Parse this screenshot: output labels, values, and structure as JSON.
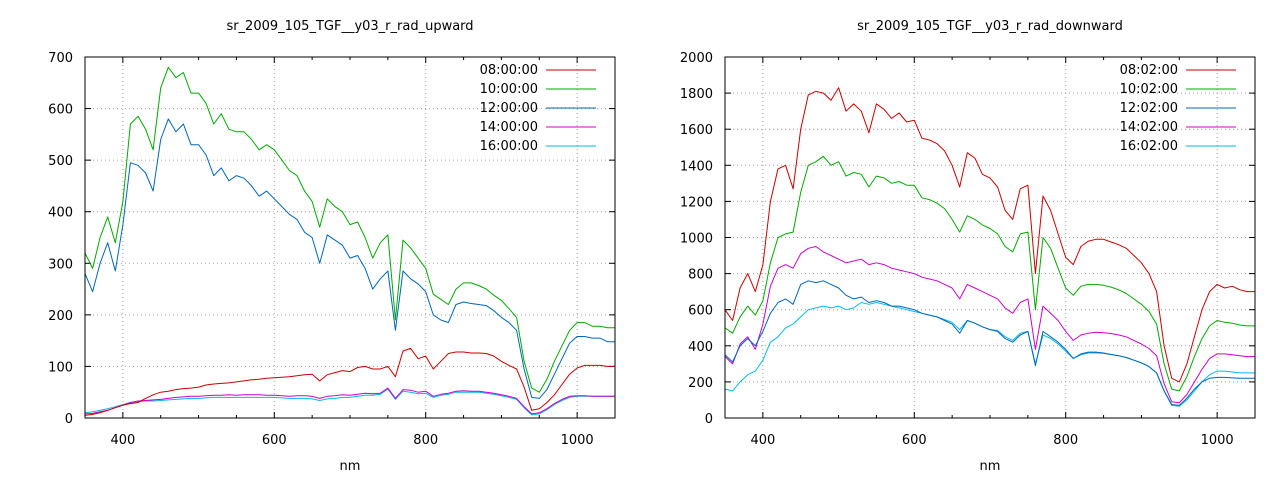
{
  "chart_data": [
    {
      "type": "line",
      "title": "sr_2009_105_TGF__y03_r_rad_upward",
      "xlabel": "nm",
      "ylabel": "",
      "xlim": [
        350,
        1050
      ],
      "ylim": [
        0,
        700
      ],
      "xticks": [
        "400",
        "600",
        "800",
        "1000"
      ],
      "yticks": [
        "0",
        "100",
        "200",
        "300",
        "400",
        "500",
        "600",
        "700"
      ],
      "grid": true,
      "legend": "top-right",
      "x": [
        350,
        360,
        370,
        380,
        390,
        400,
        410,
        420,
        430,
        440,
        450,
        460,
        470,
        480,
        490,
        500,
        510,
        520,
        530,
        540,
        550,
        560,
        570,
        580,
        590,
        600,
        610,
        620,
        630,
        640,
        650,
        660,
        670,
        680,
        690,
        700,
        710,
        720,
        730,
        740,
        750,
        760,
        770,
        780,
        790,
        800,
        810,
        820,
        830,
        840,
        850,
        860,
        870,
        880,
        890,
        900,
        910,
        920,
        930,
        940,
        950,
        960,
        970,
        980,
        990,
        1000,
        1010,
        1020,
        1030,
        1040,
        1050
      ],
      "series": [
        {
          "name": "08:00:00",
          "color": "#cc0000",
          "values": [
            5,
            7,
            10,
            15,
            20,
            25,
            28,
            30,
            38,
            45,
            50,
            52,
            55,
            57,
            58,
            60,
            64,
            66,
            67,
            68,
            70,
            72,
            74,
            75,
            77,
            78,
            79,
            80,
            82,
            84,
            85,
            72,
            84,
            88,
            92,
            90,
            98,
            100,
            95,
            95,
            100,
            80,
            130,
            135,
            115,
            120,
            95,
            110,
            125,
            128,
            128,
            126,
            126,
            125,
            120,
            110,
            102,
            95,
            60,
            15,
            18,
            30,
            45,
            65,
            85,
            97,
            102,
            102,
            102,
            100,
            100
          ]
        },
        {
          "name": "10:00:00",
          "color": "#00aa00",
          "values": [
            320,
            290,
            350,
            390,
            340,
            420,
            570,
            585,
            560,
            520,
            640,
            680,
            660,
            670,
            630,
            630,
            610,
            570,
            590,
            560,
            555,
            555,
            540,
            520,
            530,
            520,
            500,
            480,
            470,
            440,
            420,
            370,
            425,
            410,
            400,
            375,
            380,
            350,
            310,
            340,
            355,
            190,
            345,
            330,
            310,
            290,
            240,
            230,
            220,
            250,
            262,
            262,
            257,
            250,
            238,
            228,
            212,
            195,
            110,
            58,
            50,
            75,
            110,
            140,
            170,
            185,
            185,
            178,
            178,
            175,
            175
          ]
        },
        {
          "name": "12:00:00",
          "color": "#0066bb",
          "values": [
            280,
            245,
            300,
            340,
            285,
            375,
            495,
            490,
            475,
            440,
            540,
            580,
            555,
            570,
            530,
            530,
            510,
            470,
            485,
            460,
            470,
            465,
            450,
            430,
            440,
            425,
            410,
            395,
            385,
            360,
            350,
            300,
            355,
            345,
            335,
            310,
            315,
            290,
            250,
            270,
            285,
            170,
            285,
            270,
            260,
            245,
            200,
            190,
            185,
            220,
            225,
            222,
            220,
            218,
            208,
            195,
            185,
            170,
            95,
            40,
            38,
            55,
            85,
            115,
            145,
            158,
            158,
            155,
            155,
            148,
            148
          ]
        },
        {
          "name": "14:00:00",
          "color": "#cc00cc",
          "values": [
            8,
            9,
            12,
            15,
            20,
            25,
            30,
            33,
            34,
            35,
            36,
            38,
            40,
            41,
            42,
            42,
            43,
            44,
            44,
            45,
            44,
            45,
            45,
            45,
            44,
            44,
            43,
            42,
            43,
            43,
            42,
            38,
            42,
            43,
            45,
            44,
            46,
            48,
            47,
            48,
            58,
            38,
            55,
            54,
            50,
            52,
            42,
            46,
            48,
            52,
            53,
            52,
            52,
            50,
            48,
            45,
            42,
            38,
            22,
            8,
            10,
            18,
            28,
            36,
            42,
            43,
            43,
            42,
            42,
            42,
            42
          ]
        },
        {
          "name": "16:00:00",
          "color": "#00bbee",
          "values": [
            10,
            12,
            15,
            18,
            22,
            26,
            30,
            32,
            33,
            33,
            34,
            35,
            36,
            37,
            38,
            38,
            39,
            40,
            40,
            40,
            40,
            40,
            40,
            40,
            40,
            40,
            39,
            38,
            38,
            38,
            37,
            34,
            37,
            38,
            40,
            40,
            42,
            44,
            44,
            46,
            56,
            36,
            52,
            50,
            47,
            48,
            40,
            44,
            46,
            50,
            50,
            50,
            50,
            48,
            46,
            43,
            40,
            36,
            20,
            6,
            8,
            16,
            26,
            34,
            40,
            42,
            42,
            42,
            42,
            42,
            42
          ]
        }
      ]
    },
    {
      "type": "line",
      "title": "sr_2009_105_TGF__y03_r_rad_downward",
      "xlabel": "nm",
      "ylabel": "",
      "xlim": [
        350,
        1050
      ],
      "ylim": [
        0,
        2000
      ],
      "xticks": [
        "400",
        "600",
        "800",
        "1000"
      ],
      "yticks": [
        "0",
        "200",
        "400",
        "600",
        "800",
        "1000",
        "1200",
        "1400",
        "1600",
        "1800",
        "2000"
      ],
      "grid": true,
      "legend": "top-right",
      "x": [
        350,
        360,
        370,
        380,
        390,
        400,
        410,
        420,
        430,
        440,
        450,
        460,
        470,
        480,
        490,
        500,
        510,
        520,
        530,
        540,
        550,
        560,
        570,
        580,
        590,
        600,
        610,
        620,
        630,
        640,
        650,
        660,
        670,
        680,
        690,
        700,
        710,
        720,
        730,
        740,
        750,
        760,
        770,
        780,
        790,
        800,
        810,
        820,
        830,
        840,
        850,
        860,
        870,
        880,
        890,
        900,
        910,
        920,
        930,
        940,
        950,
        960,
        970,
        980,
        990,
        1000,
        1010,
        1020,
        1030,
        1040,
        1050
      ],
      "series": [
        {
          "name": "08:02:00",
          "color": "#cc0000",
          "values": [
            600,
            540,
            720,
            800,
            700,
            850,
            1200,
            1380,
            1400,
            1270,
            1600,
            1790,
            1810,
            1800,
            1760,
            1830,
            1700,
            1740,
            1700,
            1580,
            1740,
            1710,
            1660,
            1690,
            1640,
            1650,
            1550,
            1540,
            1520,
            1480,
            1400,
            1280,
            1470,
            1440,
            1350,
            1330,
            1280,
            1150,
            1100,
            1270,
            1290,
            800,
            1230,
            1150,
            1020,
            890,
            850,
            950,
            980,
            990,
            990,
            975,
            960,
            940,
            900,
            860,
            800,
            700,
            400,
            220,
            200,
            300,
            450,
            600,
            700,
            740,
            720,
            730,
            710,
            700,
            700
          ]
        },
        {
          "name": "10:02:00",
          "color": "#00aa00",
          "values": [
            500,
            470,
            560,
            620,
            570,
            650,
            860,
            1000,
            1020,
            1030,
            1250,
            1400,
            1420,
            1450,
            1400,
            1420,
            1340,
            1360,
            1350,
            1280,
            1340,
            1330,
            1300,
            1310,
            1290,
            1290,
            1220,
            1210,
            1190,
            1160,
            1100,
            1030,
            1120,
            1100,
            1070,
            1050,
            1020,
            950,
            920,
            1020,
            1030,
            600,
            1000,
            940,
            830,
            720,
            680,
            730,
            740,
            740,
            735,
            725,
            710,
            690,
            660,
            630,
            590,
            520,
            300,
            160,
            150,
            230,
            340,
            440,
            510,
            540,
            530,
            525,
            515,
            510,
            510
          ]
        },
        {
          "name": "12:02:00",
          "color": "#0066bb",
          "values": [
            350,
            310,
            400,
            440,
            400,
            480,
            580,
            640,
            660,
            630,
            740,
            760,
            750,
            760,
            740,
            720,
            680,
            660,
            670,
            640,
            650,
            640,
            620,
            620,
            610,
            600,
            580,
            570,
            560,
            540,
            520,
            470,
            540,
            525,
            505,
            490,
            480,
            440,
            420,
            460,
            480,
            290,
            480,
            450,
            420,
            380,
            330,
            355,
            365,
            365,
            360,
            352,
            345,
            335,
            320,
            305,
            285,
            250,
            150,
            75,
            70,
            110,
            160,
            200,
            220,
            225,
            225,
            222,
            220,
            220,
            220
          ]
        },
        {
          "name": "14:02:00",
          "color": "#cc00cc",
          "values": [
            340,
            300,
            410,
            450,
            380,
            520,
            730,
            830,
            850,
            830,
            910,
            940,
            950,
            920,
            900,
            880,
            860,
            870,
            880,
            850,
            860,
            850,
            830,
            820,
            810,
            800,
            780,
            770,
            760,
            740,
            720,
            660,
            740,
            720,
            700,
            680,
            660,
            610,
            580,
            640,
            660,
            380,
            620,
            580,
            540,
            480,
            430,
            460,
            470,
            475,
            472,
            468,
            460,
            450,
            430,
            410,
            385,
            345,
            190,
            90,
            85,
            130,
            200,
            270,
            330,
            355,
            355,
            350,
            345,
            340,
            340
          ]
        },
        {
          "name": "16:02:00",
          "color": "#00bbee",
          "values": [
            160,
            150,
            200,
            240,
            260,
            320,
            420,
            450,
            500,
            520,
            560,
            600,
            610,
            620,
            610,
            620,
            600,
            610,
            640,
            630,
            640,
            630,
            620,
            610,
            600,
            590,
            580,
            570,
            560,
            545,
            530,
            490,
            540,
            525,
            505,
            490,
            485,
            450,
            430,
            470,
            480,
            300,
            460,
            440,
            410,
            370,
            330,
            350,
            360,
            360,
            358,
            352,
            345,
            335,
            320,
            305,
            285,
            250,
            150,
            70,
            65,
            100,
            150,
            200,
            240,
            260,
            260,
            255,
            250,
            250,
            250
          ]
        }
      ]
    }
  ]
}
